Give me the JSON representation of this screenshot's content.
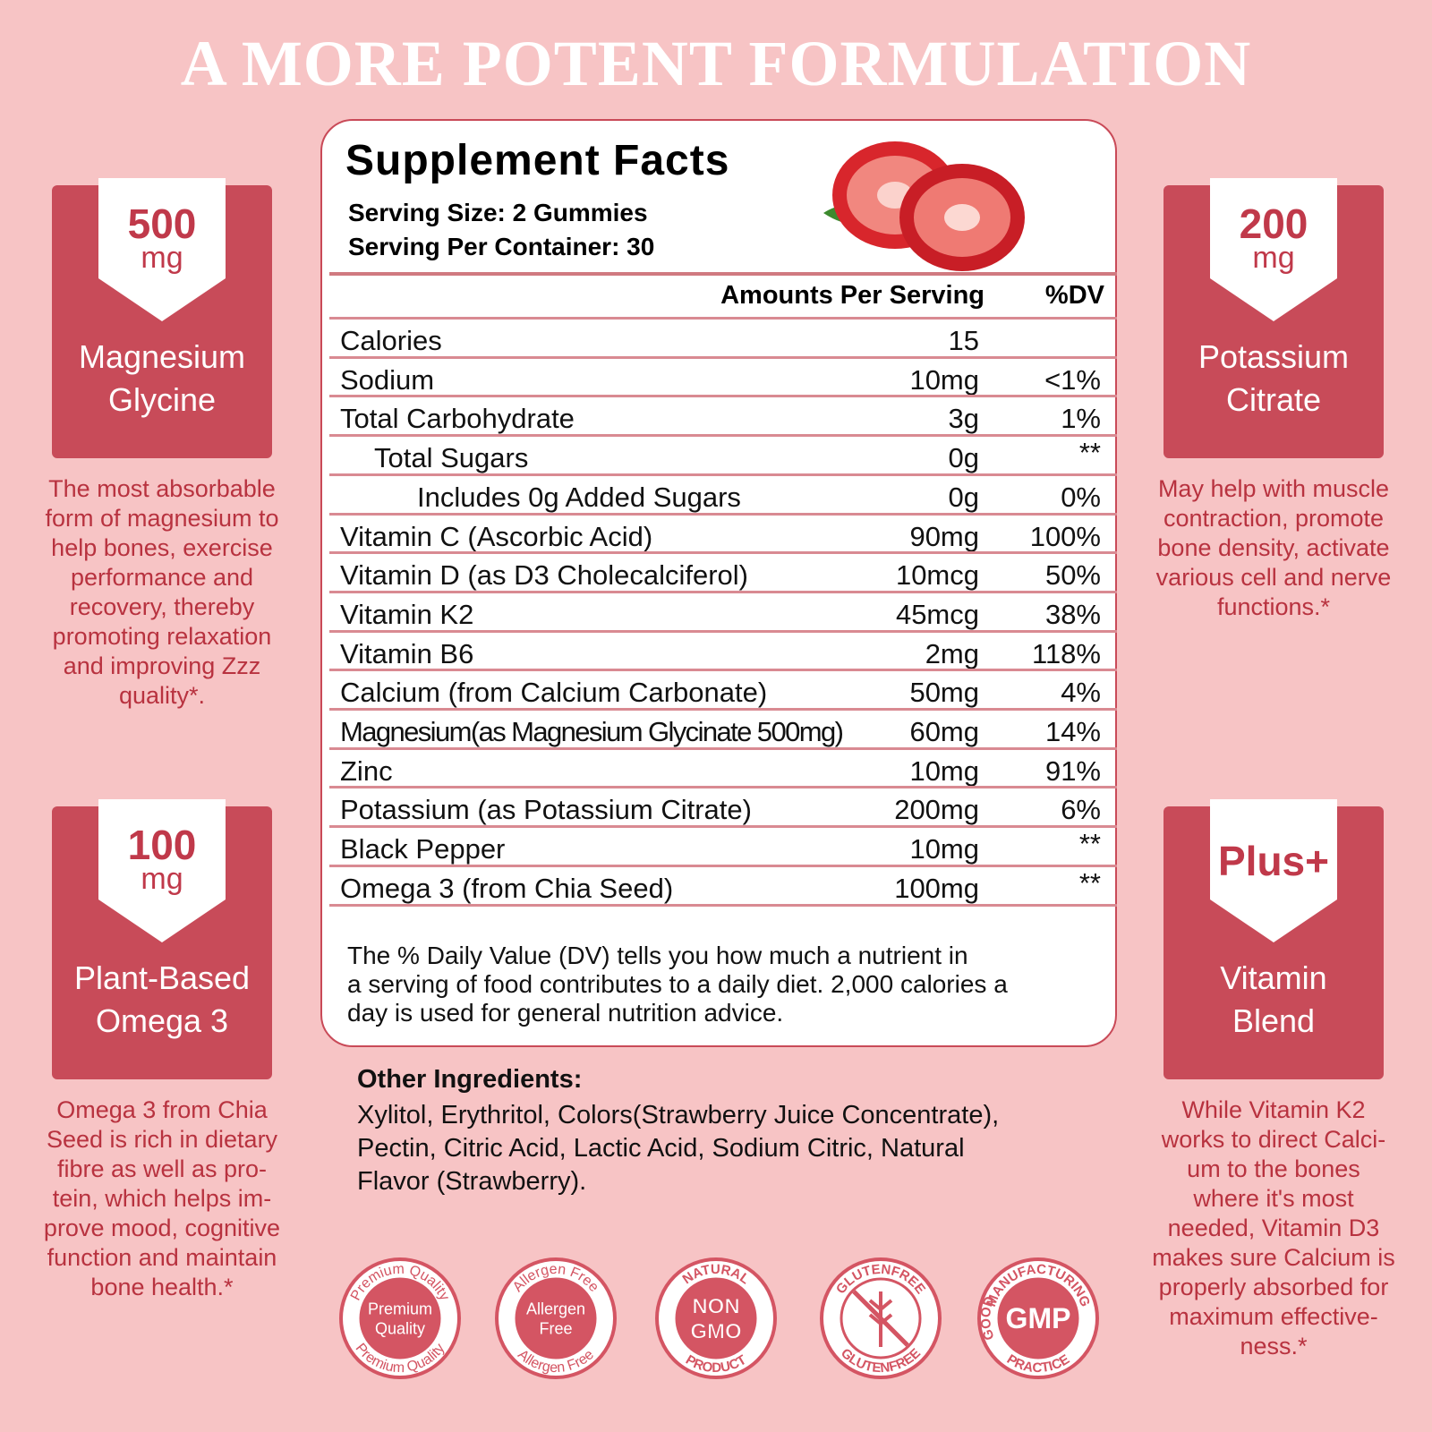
{
  "title": "A MORE POTENT FORMULATION",
  "features": [
    {
      "amount": "500",
      "unit": "mg",
      "name_lines": [
        "Magnesium",
        "Glycine"
      ],
      "description_lines": [
        "The most absorbable",
        "form of magnesium to",
        "help bones, exercise",
        "performance and",
        "recovery, thereby",
        "promoting relaxation",
        "and improving Zzz",
        "quality*."
      ]
    },
    {
      "amount": "200",
      "unit": "mg",
      "name_lines": [
        "Potassium",
        "Citrate"
      ],
      "description_lines": [
        "May help with muscle",
        "contraction, promote",
        "bone density, activate",
        "various cell and nerve",
        "functions.*"
      ]
    },
    {
      "amount": "100",
      "unit": "mg",
      "name_lines": [
        "Plant-Based",
        "Omega 3"
      ],
      "description_lines": [
        "Omega 3 from Chia",
        "Seed is rich in dietary",
        "fibre as well as pro-",
        "tein, which helps im-",
        "prove mood, cognitive",
        "function and maintain",
        "bone health.*"
      ]
    },
    {
      "amount": "Plus+",
      "name_lines": [
        "Vitamin",
        "Blend"
      ],
      "description_lines": [
        "While Vitamin K2",
        "works to direct Calci-",
        "um to the bones",
        "where it's most",
        "needed, Vitamin D3",
        "makes sure Calcium is",
        "properly absorbed for",
        "maximum effective-",
        "ness.*"
      ]
    }
  ],
  "supplement_facts": {
    "title": "Supplement Facts",
    "serving_size": "Serving Size: 2 Gummies",
    "servings_per_container": "Serving Per Container: 30",
    "header": [
      "Amounts Per Serving",
      "%DV"
    ],
    "rows": [
      {
        "name": "Calories",
        "amount": "15"
      },
      {
        "name": "Sodium",
        "amount": "10mg",
        "dv": "<1%"
      },
      {
        "name": "Total Carbohydrate",
        "amount": "3g",
        "dv": "1%"
      },
      {
        "name": "Total Sugars",
        "amount": "0g",
        "dv": "**"
      },
      {
        "name": "Includes 0g Added Sugars",
        "amount": "0g",
        "dv": "0%"
      },
      {
        "name": "Vitamin C  (Ascorbic Acid)",
        "amount": "90mg",
        "dv": "100%"
      },
      {
        "name": "Vitamin D (as D3 Cholecalciferol)",
        "amount": "10mcg",
        "dv": "50%"
      },
      {
        "name": "Vitamin K2",
        "amount": "45mcg",
        "dv": "38%"
      },
      {
        "name": "Vitamin B6",
        "amount": "2mg",
        "dv": "118%"
      },
      {
        "name": "Calcium (from Calcium Carbonate)",
        "amount": "50mg",
        "dv": "4%"
      },
      {
        "name": "Magnesium(as Magnesium Glycinate 500mg)",
        "amount": "60mg",
        "dv": "14%"
      },
      {
        "name": "Zinc",
        "amount": "10mg",
        "dv": "91%"
      },
      {
        "name": "Potassium (as Potassium Citrate)",
        "amount": "200mg",
        "dv": "6%"
      },
      {
        "name": "Black Pepper",
        "amount": "10mg",
        "dv": "**"
      },
      {
        "name": "Omega 3 (from Chia Seed)",
        "amount": "100mg",
        "dv": "**"
      }
    ],
    "footnote_lines": [
      "The % Daily Value (DV) tells you how much a nutrient in",
      "a serving of food contributes to a daily diet. 2,000 calories a",
      "day is used for general nutrition advice."
    ]
  },
  "other_ingredients": {
    "label": "Other Ingredients:",
    "lines": [
      "Xylitol, Erythritol, Colors(Strawberry Juice Concentrate),",
      "Pectin, Citric Acid, Lactic Acid, Sodium Citric, Natural",
      "Flavor (Strawberry)."
    ]
  },
  "badges": [
    {
      "arcs": [
        "Premium Quality",
        "Premium Quality"
      ],
      "center_lines": [
        "Premium",
        "Quality"
      ]
    },
    {
      "arcs": [
        "Allergen Free",
        "Allergen Free"
      ],
      "center_lines": [
        "Allergen",
        "Free"
      ]
    },
    {
      "arcs": [
        "NATURAL",
        "PRODUCT"
      ],
      "center_lines": [
        "NON",
        "GMO"
      ]
    },
    {
      "arcs": [
        "GLUTENFREE",
        "GLUTENFREE"
      ]
    },
    {
      "arcs": [
        "MANUFACTURING",
        "PRACTICE",
        "GOOD"
      ],
      "center_lines": [
        "GMP"
      ]
    }
  ]
}
